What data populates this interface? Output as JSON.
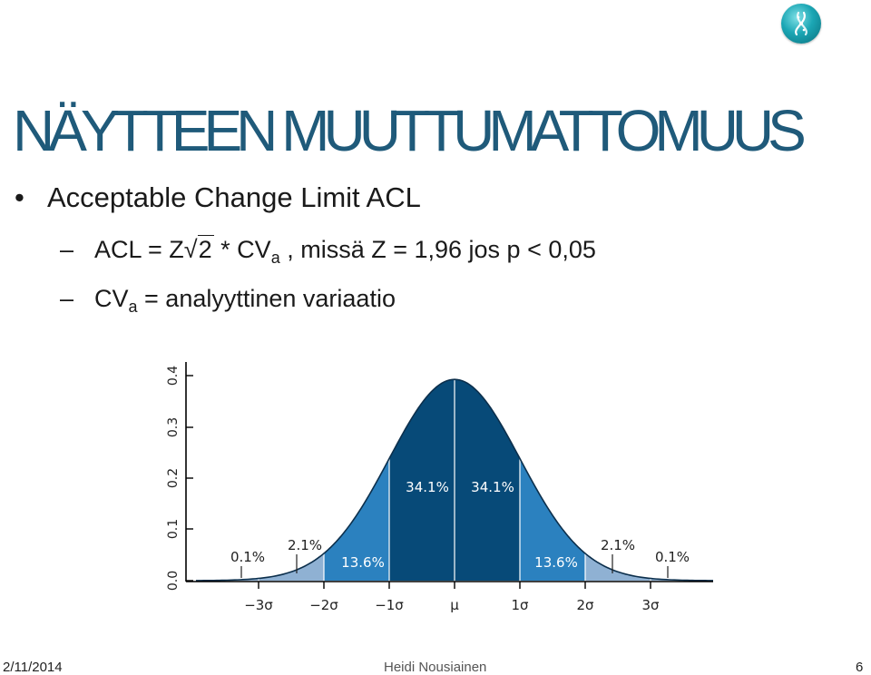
{
  "slide": {
    "title": "NÄYTTEEN MUUTTUMATTOMUUS",
    "bullet": "Acceptable Change Limit ACL",
    "line1": {
      "pre": "ACL = Z",
      "sqrt_arg": "2",
      "mid": " * CV",
      "sub": "a",
      "post": " , missä Z = 1,96 jos p < 0,05"
    },
    "line2": {
      "pre": "CV",
      "sub": "a",
      "post": " = analyyttinen variaatio"
    },
    "icon": "logo-icon"
  },
  "chart_data": {
    "type": "area",
    "title": "",
    "xlabel": "",
    "ylabel": "",
    "ylim": [
      0,
      0.4
    ],
    "xlim": [
      -3.5,
      3.8
    ],
    "y_ticks": [
      "0.0",
      "0.1",
      "0.2",
      "0.3",
      "0.4"
    ],
    "x_ticks": [
      "−3σ",
      "−2σ",
      "−1σ",
      "μ",
      "1σ",
      "2σ",
      "3σ"
    ],
    "bands": [
      {
        "from": -3,
        "to": -2,
        "label": "2.1%"
      },
      {
        "from": -2,
        "to": -1,
        "label": "13.6%"
      },
      {
        "from": -1,
        "to": 0,
        "label": "34.1%"
      },
      {
        "from": 0,
        "to": 1,
        "label": "34.1%"
      },
      {
        "from": 1,
        "to": 2,
        "label": "13.6%"
      },
      {
        "from": 2,
        "to": 3,
        "label": "2.1%"
      }
    ],
    "tails": [
      {
        "side": "left",
        "label": "0.1%"
      },
      {
        "side": "right",
        "label": "0.1%"
      }
    ],
    "colors": {
      "tail": "#8fb1d3",
      "outer": "#2b81bf",
      "inner": "#0a5a91",
      "core": "#074a78",
      "stroke": "#000000"
    }
  },
  "footer": {
    "date": "2/11/2014",
    "author": "Heidi Nousiainen",
    "page": "6"
  }
}
